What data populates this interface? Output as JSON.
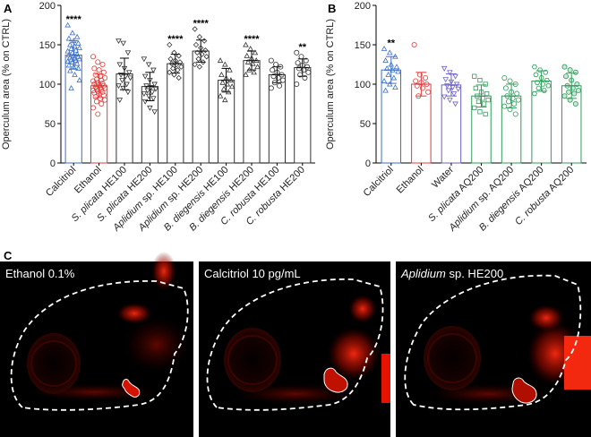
{
  "panels": {
    "a": "A",
    "b": "B",
    "c": "C"
  },
  "chart_data": [
    {
      "type": "bar",
      "panel": "A",
      "ylabel": "Operculum area (% on CTRL)",
      "ylim": [
        0,
        200
      ],
      "yticks": [
        0,
        50,
        100,
        150,
        200
      ],
      "error_bars": "SD",
      "categories": [
        {
          "label": "Calcitriol",
          "parts": [
            {
              "t": "Calcitriol",
              "i": false
            }
          ],
          "mean": 137,
          "sd": 18,
          "color": "#3b6fc9",
          "marker": "triangle-up",
          "sig": "****",
          "points": [
            175,
            165,
            160,
            158,
            155,
            152,
            150,
            148,
            146,
            145,
            143,
            142,
            140,
            138,
            137,
            136,
            135,
            134,
            133,
            132,
            131,
            130,
            129,
            128,
            126,
            124,
            122,
            120,
            117,
            112,
            105,
            95
          ]
        },
        {
          "label": "Ethanol",
          "parts": [
            {
              "t": "Ethanol",
              "i": false
            }
          ],
          "mean": 98,
          "sd": 15,
          "color": "#e23b3b",
          "marker": "circle",
          "sig": "",
          "points": [
            135,
            128,
            125,
            120,
            118,
            115,
            112,
            110,
            108,
            106,
            105,
            104,
            102,
            101,
            100,
            99,
            98,
            97,
            96,
            95,
            94,
            93,
            92,
            91,
            90,
            89,
            88,
            86,
            84,
            82,
            80,
            78,
            75,
            70,
            62
          ]
        },
        {
          "label": "S. plicata HE100",
          "parts": [
            {
              "t": "S. plicata",
              "i": true
            },
            {
              "t": " HE100",
              "i": false
            }
          ],
          "mean": 113,
          "sd": 20,
          "color": "#333333",
          "marker": "triangle-down",
          "sig": "",
          "points": [
            155,
            152,
            140,
            125,
            120,
            115,
            112,
            110,
            108,
            105,
            100,
            98,
            95,
            90,
            80
          ]
        },
        {
          "label": "S. plicata HE200",
          "parts": [
            {
              "t": "S. plicata",
              "i": true
            },
            {
              "t": " HE200",
              "i": false
            }
          ],
          "mean": 97,
          "sd": 18,
          "color": "#333333",
          "marker": "triangle-down",
          "sig": "",
          "points": [
            132,
            125,
            118,
            110,
            105,
            100,
            98,
            96,
            94,
            92,
            90,
            88,
            85,
            82,
            78,
            70,
            65
          ]
        },
        {
          "label": "Aplidium sp. HE100",
          "parts": [
            {
              "t": "Aplidium",
              "i": true
            },
            {
              "t": " sp. HE100",
              "i": false
            }
          ],
          "mean": 126,
          "sd": 12,
          "color": "#333333",
          "marker": "diamond",
          "sig": "****",
          "points": [
            150,
            140,
            136,
            132,
            130,
            128,
            126,
            125,
            122,
            120,
            118,
            115,
            112,
            108
          ]
        },
        {
          "label": "Aplidium sp. HE200",
          "parts": [
            {
              "t": "Aplidium",
              "i": true
            },
            {
              "t": " sp. HE200",
              "i": false
            }
          ],
          "mean": 142,
          "sd": 14,
          "color": "#333333",
          "marker": "diamond",
          "sig": "****",
          "points": [
            170,
            160,
            155,
            150,
            146,
            143,
            140,
            138,
            135,
            132,
            128,
            125,
            122
          ]
        },
        {
          "label": "B. diegensis HE100",
          "parts": [
            {
              "t": "B. diegensis",
              "i": true
            },
            {
              "t": " HE100",
              "i": false
            }
          ],
          "mean": 105,
          "sd": 15,
          "color": "#333333",
          "marker": "triangle-up",
          "sig": "",
          "points": [
            130,
            125,
            118,
            112,
            108,
            105,
            102,
            100,
            97,
            94,
            90,
            85,
            80
          ]
        },
        {
          "label": "B. diegensis HE200",
          "parts": [
            {
              "t": "B. diegensis",
              "i": true
            },
            {
              "t": " HE200",
              "i": false
            }
          ],
          "mean": 130,
          "sd": 12,
          "color": "#333333",
          "marker": "triangle-up",
          "sig": "****",
          "points": [
            150,
            145,
            140,
            136,
            133,
            130,
            128,
            126,
            122,
            118,
            115,
            112
          ]
        },
        {
          "label": "C. robusta HE100",
          "parts": [
            {
              "t": "C. robusta",
              "i": true
            },
            {
              "t": " HE100",
              "i": false
            }
          ],
          "mean": 112,
          "sd": 10,
          "color": "#333333",
          "marker": "circle",
          "sig": "",
          "points": [
            130,
            125,
            122,
            118,
            115,
            112,
            110,
            108,
            105,
            102,
            98,
            95
          ]
        },
        {
          "label": "C. robusta HE200",
          "parts": [
            {
              "t": "C. robusta",
              "i": true
            },
            {
              "t": " HE200",
              "i": false
            }
          ],
          "mean": 121,
          "sd": 11,
          "color": "#333333",
          "marker": "circle",
          "sig": "**",
          "points": [
            140,
            135,
            130,
            127,
            124,
            122,
            120,
            118,
            115,
            112,
            108,
            100
          ]
        }
      ]
    },
    {
      "type": "bar",
      "panel": "B",
      "ylabel": "Operculum area (% on CTRL)",
      "ylim": [
        0,
        200
      ],
      "yticks": [
        0,
        50,
        100,
        150,
        200
      ],
      "error_bars": "SD",
      "categories": [
        {
          "label": "Calcitriol",
          "parts": [
            {
              "t": "Calcitriol",
              "i": false
            }
          ],
          "mean": 118,
          "sd": 17,
          "color": "#3b6fc9",
          "marker": "triangle-up",
          "sig": "**",
          "points": [
            145,
            140,
            135,
            130,
            125,
            122,
            120,
            118,
            116,
            112,
            108,
            104,
            100,
            96,
            92
          ]
        },
        {
          "label": "Ethanol",
          "parts": [
            {
              "t": "Ethanol",
              "i": false
            }
          ],
          "mean": 100,
          "sd": 15,
          "color": "#e23b3b",
          "marker": "circle",
          "sig": "",
          "points": [
            150,
            112,
            108,
            104,
            102,
            100,
            98,
            95,
            90,
            85
          ]
        },
        {
          "label": "Water",
          "parts": [
            {
              "t": "Water",
              "i": false
            }
          ],
          "mean": 99,
          "sd": 14,
          "color": "#6b5fc9",
          "marker": "triangle-down",
          "sig": "",
          "points": [
            120,
            115,
            110,
            106,
            103,
            100,
            98,
            96,
            94,
            92,
            88,
            84,
            80,
            75
          ]
        },
        {
          "label": "S. plicata AQ200",
          "parts": [
            {
              "t": "S. plicata",
              "i": true
            },
            {
              "t": " AQ200",
              "i": false
            }
          ],
          "mean": 85,
          "sd": 14,
          "color": "#2e9d5a",
          "marker": "square",
          "sig": "",
          "points": [
            110,
            105,
            100,
            95,
            90,
            88,
            85,
            82,
            80,
            78,
            75,
            70,
            65,
            62
          ]
        },
        {
          "label": "Aplidium sp. AQ200",
          "parts": [
            {
              "t": "Aplidium",
              "i": true
            },
            {
              "t": " sp. AQ200",
              "i": false
            }
          ],
          "mean": 85,
          "sd": 15,
          "color": "#2e9d5a",
          "marker": "circle",
          "sig": "",
          "points": [
            108,
            104,
            100,
            95,
            90,
            88,
            85,
            82,
            80,
            78,
            75,
            72,
            68,
            62
          ]
        },
        {
          "label": "B. diegensis AQ200",
          "parts": [
            {
              "t": "B. diegensis",
              "i": true
            },
            {
              "t": " AQ200",
              "i": false
            }
          ],
          "mean": 104,
          "sd": 13,
          "color": "#2e9d5a",
          "marker": "hexagon",
          "sig": "",
          "points": [
            122,
            118,
            115,
            112,
            108,
            105,
            102,
            100,
            98,
            95,
            92,
            88
          ]
        },
        {
          "label": "C. robusta AQ200",
          "parts": [
            {
              "t": "C. robusta",
              "i": true
            },
            {
              "t": " AQ200",
              "i": false
            }
          ],
          "mean": 98,
          "sd": 16,
          "color": "#2e9d5a",
          "marker": "dotted-circle",
          "sig": "",
          "points": [
            122,
            118,
            115,
            110,
            105,
            100,
            98,
            95,
            92,
            90,
            88,
            85,
            80,
            75
          ]
        }
      ]
    }
  ],
  "micrographs": [
    {
      "label_parts": [
        {
          "t": "Ethanol 0.1%",
          "i": false
        }
      ]
    },
    {
      "label_parts": [
        {
          "t": "Calcitriol 10 pg/mL",
          "i": false
        }
      ]
    },
    {
      "label_parts": [
        {
          "t": "Aplidium",
          "i": true
        },
        {
          "t": " sp. HE200",
          "i": false
        }
      ]
    }
  ]
}
